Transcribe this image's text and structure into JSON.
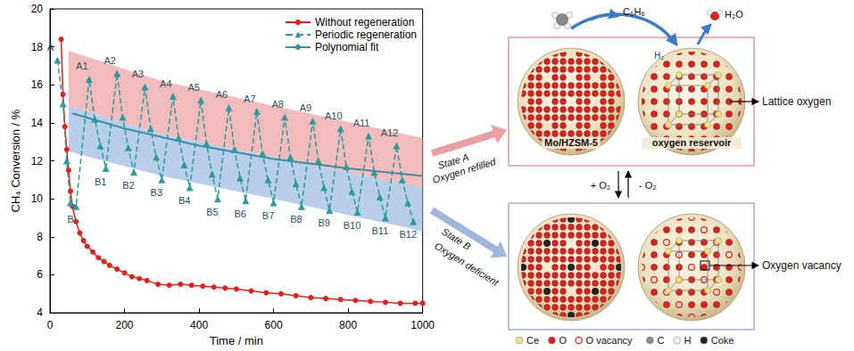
{
  "chart_data": {
    "type": "line",
    "xlabel": "Time / min",
    "ylabel": "CH₄ Conversion / %",
    "xlim": [
      0,
      1000
    ],
    "xticks": [
      0,
      200,
      400,
      600,
      800,
      1000
    ],
    "ylim": [
      4,
      20
    ],
    "yticks": [
      4,
      6,
      8,
      10,
      12,
      14,
      16,
      18,
      20
    ],
    "grid": false,
    "legend": "upper right",
    "series": [
      {
        "name": "Without regeneration",
        "color": "#e3201b",
        "marker": "circle",
        "line_style": "solid",
        "x": [
          30,
          35,
          40,
          45,
          50,
          55,
          60,
          70,
          80,
          90,
          100,
          115,
          130,
          145,
          160,
          180,
          200,
          220,
          240,
          260,
          290,
          320,
          350,
          380,
          410,
          440,
          470,
          500,
          540,
          580,
          620,
          660,
          700,
          740,
          780,
          820,
          860,
          900,
          940,
          980,
          1000
        ],
        "values": [
          18.4,
          15.5,
          13.8,
          12.6,
          11.5,
          10.4,
          9.6,
          8.8,
          8.2,
          7.8,
          7.5,
          7.2,
          6.9,
          6.7,
          6.5,
          6.3,
          6.1,
          5.9,
          5.8,
          5.7,
          5.5,
          5.45,
          5.5,
          5.45,
          5.4,
          5.35,
          5.3,
          5.25,
          5.15,
          5.05,
          5.0,
          4.9,
          4.8,
          4.75,
          4.7,
          4.65,
          4.6,
          4.55,
          4.5,
          4.5,
          4.5
        ]
      },
      {
        "name": "Periodic regeneration",
        "color": "#2f9a9c",
        "marker": "triangle",
        "line_style": "dashed",
        "x": [
          20,
          35,
          45,
          55,
          70,
          105,
          120,
          135,
          150,
          180,
          195,
          210,
          225,
          255,
          270,
          285,
          300,
          330,
          345,
          360,
          375,
          405,
          420,
          435,
          450,
          480,
          495,
          510,
          525,
          555,
          570,
          585,
          600,
          630,
          645,
          660,
          675,
          705,
          720,
          735,
          750,
          780,
          795,
          810,
          825,
          855,
          870,
          885,
          900,
          930,
          945,
          960,
          975
        ],
        "values": [
          17.3,
          15.0,
          12.0,
          9.8,
          9.6,
          16.3,
          14.2,
          12.8,
          11.6,
          16.6,
          14.3,
          12.7,
          11.4,
          15.9,
          13.7,
          12.2,
          11.0,
          15.4,
          13.2,
          11.8,
          10.6,
          15.2,
          12.9,
          11.3,
          10.0,
          14.8,
          12.6,
          11.1,
          9.9,
          14.6,
          12.4,
          11.0,
          9.8,
          14.3,
          12.2,
          10.8,
          9.6,
          14.1,
          12.0,
          10.6,
          9.4,
          13.7,
          11.7,
          10.4,
          9.3,
          13.3,
          11.4,
          10.1,
          9.0,
          12.8,
          11.0,
          9.8,
          8.8
        ],
        "point_labels": [
          "A",
          null,
          null,
          null,
          "B",
          "A1",
          null,
          null,
          "B1",
          "A2",
          null,
          null,
          "B2",
          "A3",
          null,
          null,
          "B3",
          "A4",
          null,
          null,
          "B4",
          "A5",
          null,
          null,
          "B5",
          "A6",
          null,
          null,
          "B6",
          "A7",
          null,
          null,
          "B7",
          "A8",
          null,
          null,
          "B8",
          "A9",
          null,
          null,
          "B9",
          "A10",
          null,
          null,
          "B10",
          "A11",
          null,
          null,
          "B11",
          "A12",
          null,
          null,
          "B12"
        ]
      },
      {
        "name": "Polynomial fit",
        "color": "#3d8fa3",
        "marker": "none",
        "line_style": "solid",
        "x": [
          60,
          200,
          400,
          600,
          800,
          1000
        ],
        "values": [
          14.5,
          13.7,
          12.8,
          12.1,
          11.6,
          11.2
        ]
      }
    ],
    "bands": [
      {
        "color": "#eea6a6",
        "x": [
          50,
          300,
          600,
          1000
        ],
        "upper": [
          17.8,
          16.2,
          14.9,
          13.2
        ],
        "lower": [
          14.9,
          13.4,
          12.2,
          10.6
        ]
      },
      {
        "color": "#9fbfe6",
        "x": [
          50,
          300,
          600,
          1000
        ],
        "upper": [
          14.9,
          13.4,
          12.2,
          10.6
        ],
        "lower": [
          12.5,
          11.2,
          10.0,
          8.3
        ]
      }
    ]
  },
  "diagram": {
    "states": [
      {
        "title": "State A",
        "caption": "Oxygen refilled",
        "color": "#e8a0a0",
        "callout": "Lattice oxygen",
        "sphere_labels": [
          "Mo/HZSM-5",
          "oxygen reservoir"
        ]
      },
      {
        "title": "State B",
        "caption": "Oxygen deficient",
        "color": "#9fb7da",
        "callout": "Oxygen vacancy"
      }
    ],
    "products": {
      "benzene": "C₆H₆",
      "water": "H₂O",
      "hydrogen": "H₂"
    },
    "exchange": [
      "+ O₂",
      "- O₂"
    ],
    "legend": [
      {
        "label": "Ce",
        "color": "#f1e08a",
        "marker": "dot"
      },
      {
        "label": "O",
        "color": "#d8241f",
        "marker": "dot"
      },
      {
        "label": "O vacancy",
        "color": "#d8241f",
        "marker": "ring"
      },
      {
        "label": "C",
        "color": "#8a8a8a",
        "marker": "dot"
      },
      {
        "label": "H",
        "color": "#f0f0f0",
        "marker": "dot"
      },
      {
        "label": "Coke",
        "color": "#222222",
        "marker": "dot"
      }
    ]
  }
}
